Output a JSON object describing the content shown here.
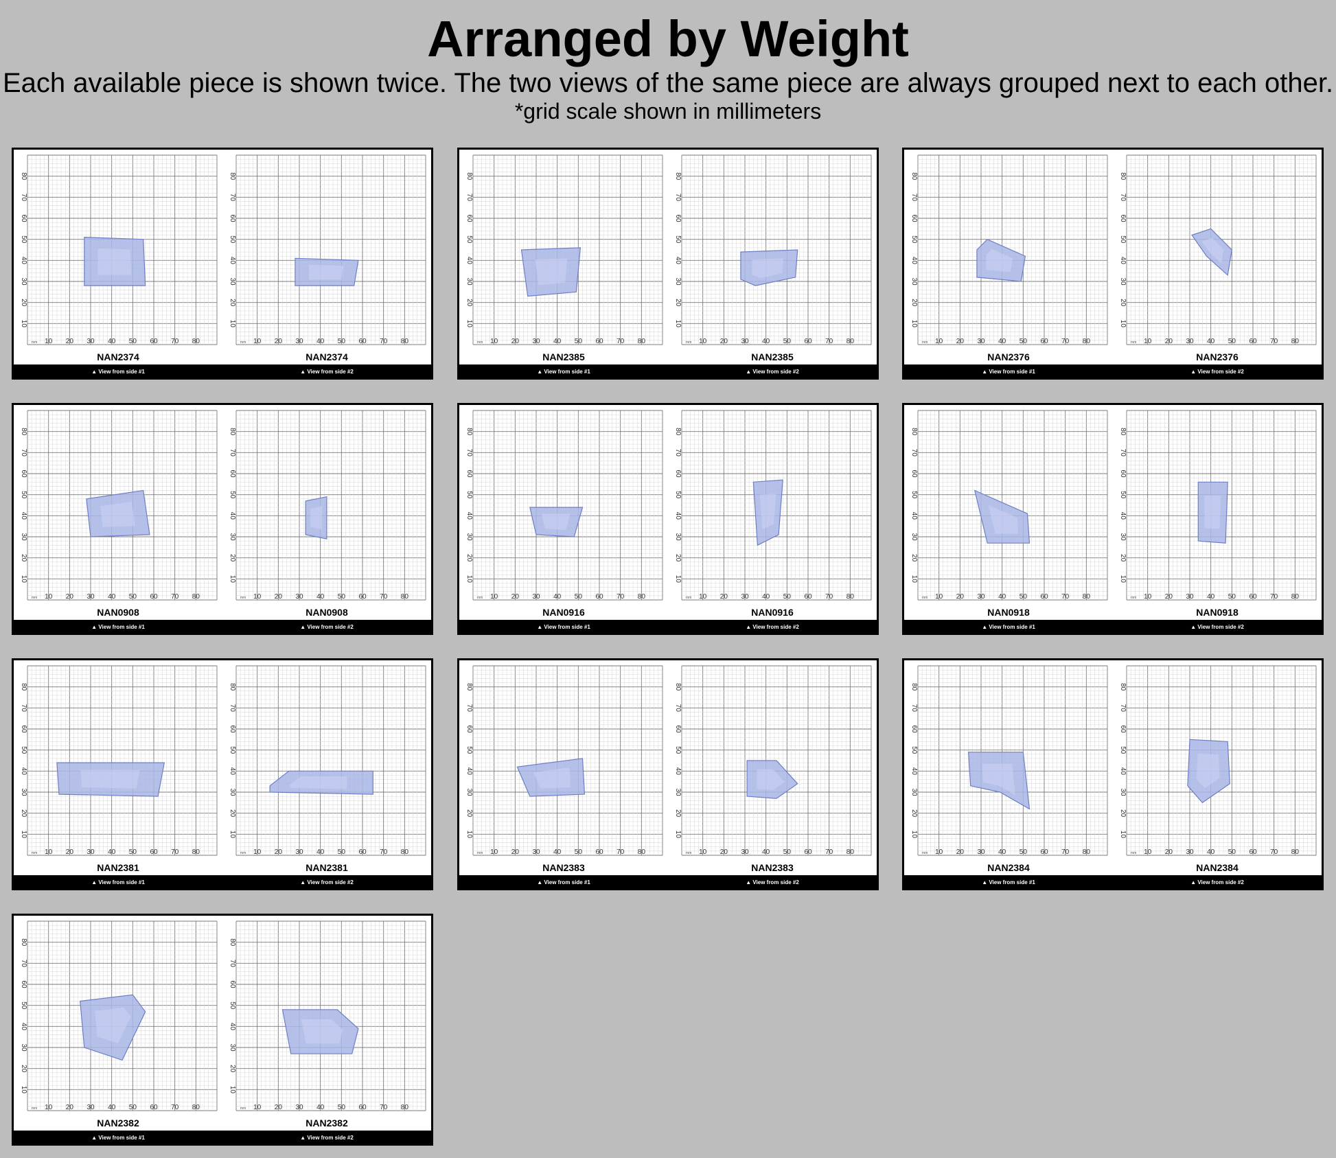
{
  "header": {
    "title": "Arranged by Weight",
    "subtitle": "Each available piece is shown twice. The two views of the same piece are always grouped next to each other.",
    "note": "*grid scale shown in millimeters"
  },
  "grid": {
    "unit": "mm",
    "x_ticks": [
      "10",
      "20",
      "30",
      "40",
      "50",
      "60",
      "70",
      "80"
    ],
    "y_ticks": [
      "80",
      "70",
      "60",
      "50",
      "40",
      "30",
      "20",
      "10"
    ]
  },
  "captions": {
    "side1": "▲ View from side #1",
    "side2": "▲ View from side #2"
  },
  "colors": {
    "background": "#bdbdbd",
    "stone_fill": "#a9b6e6",
    "stone_stroke": "#6d7fc4"
  },
  "pieces": [
    {
      "code": "NAN2374"
    },
    {
      "code": "NAN2385"
    },
    {
      "code": "NAN2376"
    },
    {
      "code": "NAN0908"
    },
    {
      "code": "NAN0916"
    },
    {
      "code": "NAN0918"
    },
    {
      "code": "NAN2381"
    },
    {
      "code": "NAN2383"
    },
    {
      "code": "NAN2384"
    },
    {
      "code": "NAN2382"
    }
  ]
}
